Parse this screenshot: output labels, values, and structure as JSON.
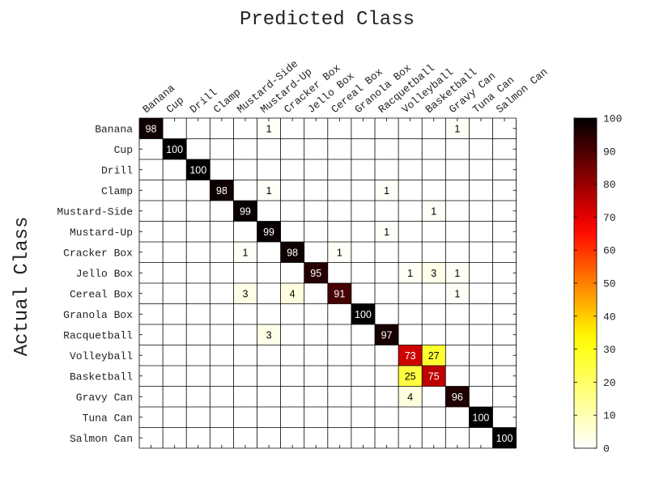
{
  "chart_data": {
    "type": "heatmap",
    "title": "Predicted Class",
    "xlabel": "",
    "ylabel": "Actual Class",
    "x_categories": [
      "Banana",
      "Cup",
      "Drill",
      "Clamp",
      "Mustard-Side",
      "Mustard-Up",
      "Cracker Box",
      "Jello Box",
      "Cereal Box",
      "Granola Box",
      "Racquetball",
      "Volleyball",
      "Basketball",
      "Gravy Can",
      "Tuna Can",
      "Salmon Can"
    ],
    "y_categories": [
      "Banana",
      "Cup",
      "Drill",
      "Clamp",
      "Mustard-Side",
      "Mustard-Up",
      "Cracker Box",
      "Jello Box",
      "Cereal Box",
      "Granola Box",
      "Racquetball",
      "Volleyball",
      "Basketball",
      "Gravy Can",
      "Tuna Can",
      "Salmon Can"
    ],
    "cells": [
      [
        0,
        0,
        98
      ],
      [
        0,
        5,
        1
      ],
      [
        0,
        13,
        1
      ],
      [
        1,
        1,
        100
      ],
      [
        2,
        2,
        100
      ],
      [
        3,
        3,
        98
      ],
      [
        3,
        5,
        1
      ],
      [
        3,
        10,
        1
      ],
      [
        4,
        4,
        99
      ],
      [
        4,
        12,
        1
      ],
      [
        5,
        5,
        99
      ],
      [
        5,
        10,
        1
      ],
      [
        6,
        4,
        1
      ],
      [
        6,
        6,
        98
      ],
      [
        6,
        8,
        1
      ],
      [
        7,
        7,
        95
      ],
      [
        7,
        11,
        1
      ],
      [
        7,
        12,
        3
      ],
      [
        7,
        13,
        1
      ],
      [
        8,
        4,
        3
      ],
      [
        8,
        6,
        4
      ],
      [
        8,
        8,
        91
      ],
      [
        8,
        13,
        1
      ],
      [
        9,
        9,
        100
      ],
      [
        10,
        5,
        3
      ],
      [
        10,
        10,
        97
      ],
      [
        11,
        11,
        73
      ],
      [
        11,
        12,
        27
      ],
      [
        12,
        11,
        25
      ],
      [
        12,
        12,
        75
      ],
      [
        13,
        11,
        4
      ],
      [
        13,
        13,
        96
      ],
      [
        14,
        14,
        100
      ],
      [
        15,
        15,
        100
      ]
    ],
    "value_range": [
      0,
      100
    ],
    "colormap": "hot (reversed): white → yellow → red → black",
    "colorbar_ticks": [
      0,
      10,
      20,
      30,
      40,
      50,
      60,
      70,
      80,
      90,
      100
    ],
    "grid": true,
    "legend": "colorbar on right"
  }
}
